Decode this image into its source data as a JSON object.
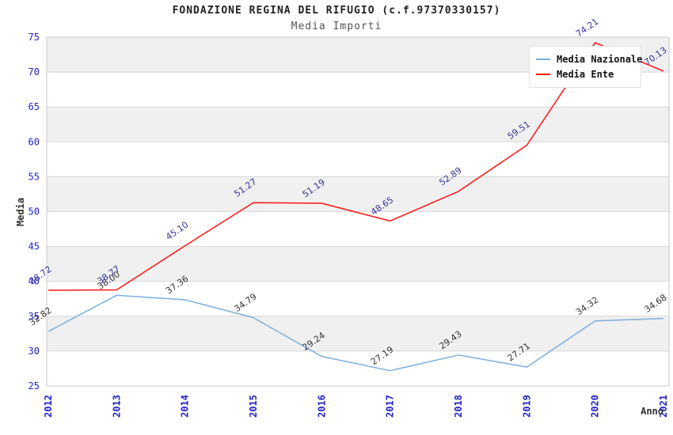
{
  "header": {
    "title": "FONDAZIONE REGINA DEL RIFUGIO (c.f.97370330157)",
    "subtitle": "Media Importi"
  },
  "legend": {
    "position": "top-right",
    "items": [
      {
        "label": "Media Nazionale",
        "color": "#7aafe0"
      },
      {
        "label": "Media Ente",
        "color": "#ff1414"
      }
    ]
  },
  "chart_data": {
    "type": "line",
    "title": "FONDAZIONE REGINA DEL RIFUGIO (c.f.97370330157)",
    "subtitle": "Media Importi",
    "xlabel": "Anno",
    "ylabel": "Media",
    "x": [
      "2012",
      "2013",
      "2014",
      "2015",
      "2016",
      "2017",
      "2018",
      "2019",
      "2020",
      "2021"
    ],
    "series": [
      {
        "name": "Media Nazionale",
        "color": "#7aafe0",
        "label_color": "#333333",
        "values": [
          32.82,
          38.0,
          37.36,
          34.79,
          29.24,
          27.19,
          29.43,
          27.71,
          34.32,
          34.68
        ]
      },
      {
        "name": "Media Ente",
        "color": "#ff1414",
        "label_color": "#333399",
        "values": [
          38.72,
          38.77,
          45.1,
          51.27,
          51.19,
          48.65,
          52.89,
          59.51,
          74.21,
          70.13
        ]
      }
    ],
    "ylim": [
      25,
      75
    ],
    "ytick_step": 5,
    "yticks": [
      25,
      30,
      35,
      40,
      45,
      50,
      55,
      60,
      65,
      70,
      75
    ],
    "grid": "horizontal-bands",
    "legend_position": "top-right",
    "colors": {
      "tick_label": "#2121cc",
      "band_fill": "#f0f0f0",
      "grid_line": "#d8d8d8",
      "plot_border": "#c8c8c8",
      "axis_title": "#333333"
    }
  }
}
